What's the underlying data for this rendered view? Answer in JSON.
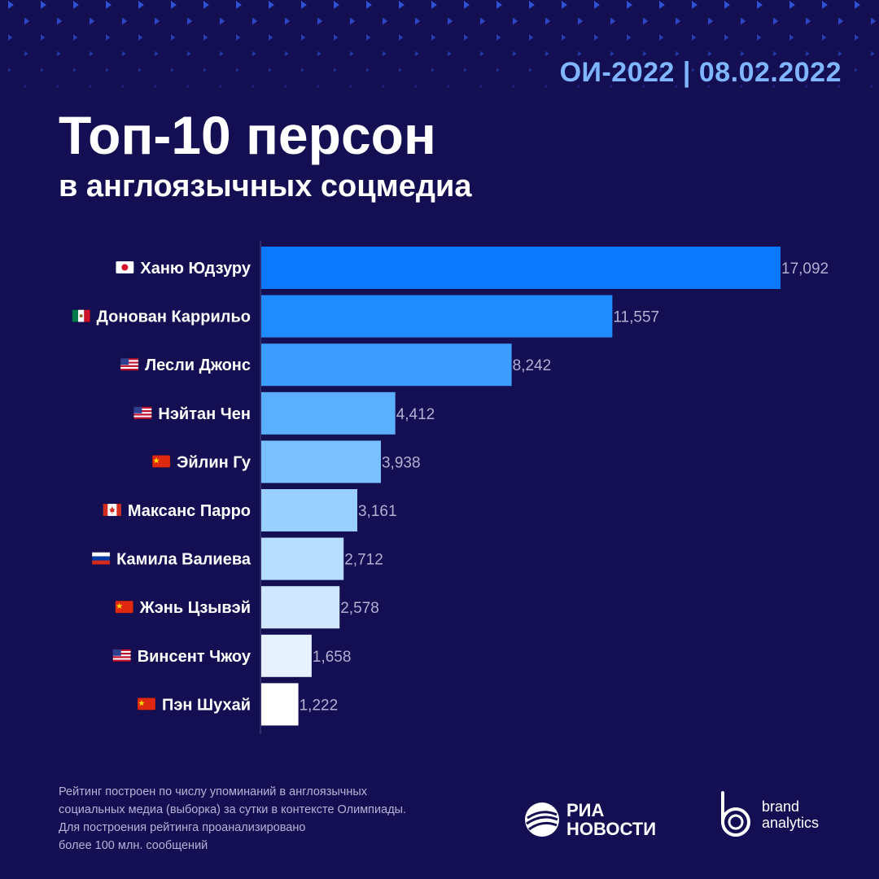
{
  "header": {
    "date_label": "ОИ-2022 | 08.02.2022",
    "title": "Топ-10 персон",
    "subtitle": "в англоязычных соцмедиа"
  },
  "colors": {
    "background": "#140e52",
    "accent": "#0a78ff",
    "pattern": "#2f4fd6",
    "bar_gradient": [
      "#0a78ff",
      "#1f8bff",
      "#3c9dff",
      "#5aafff",
      "#7ac0ff",
      "#9ad0ff",
      "#b7ddff",
      "#d0e8ff",
      "#e6f2ff",
      "#ffffff"
    ]
  },
  "chart_data": {
    "type": "bar",
    "orientation": "horizontal",
    "categories": [
      "Ханю Юдзуру",
      "Донован Каррильо",
      "Лесли Джонс",
      "Нэйтан Чен",
      "Эйлин Гу",
      "Максанс Парро",
      "Камила Валиева",
      "Жэнь Цзывэй",
      "Винсент Чжоу",
      "Пэн Шухай"
    ],
    "flags": [
      "JP",
      "MX",
      "US",
      "US",
      "CN",
      "CA",
      "RU",
      "CN",
      "US",
      "CN"
    ],
    "values": [
      17092,
      11557,
      8242,
      4412,
      3938,
      3161,
      2712,
      2578,
      1658,
      1222
    ],
    "value_labels": [
      "17,092",
      "11,557",
      "8,242",
      "4,412",
      "3,938",
      "3,161",
      "2,712",
      "2,578",
      "1,658",
      "1,222"
    ],
    "xlim": [
      0,
      17092
    ],
    "grid": false,
    "legend": "none"
  },
  "footer": {
    "note_lines": [
      "Рейтинг построен по числу упоминаний в англоязычных",
      "социальных медиа (выборка) за сутки в контексте Олимпиады.",
      "Для построения рейтинга проанализировано",
      "более 100 млн. сообщений"
    ],
    "ria_line1": "РИА",
    "ria_line2": "НОВОСТИ",
    "ba_line1": "brand",
    "ba_line2": "analytics"
  }
}
